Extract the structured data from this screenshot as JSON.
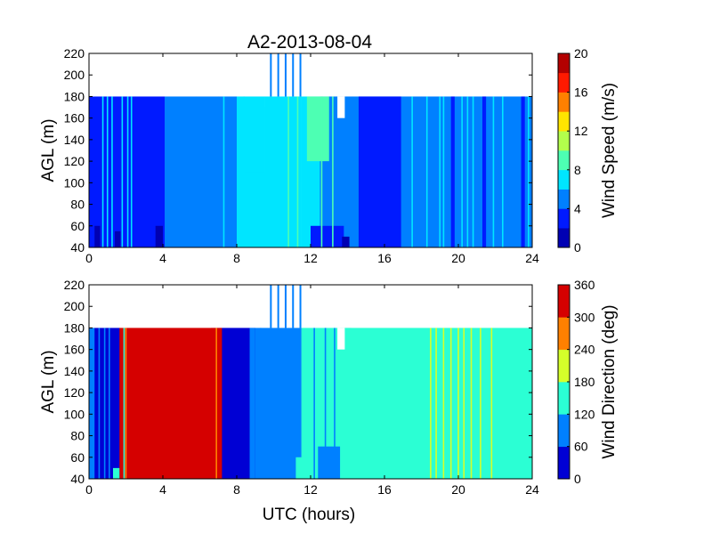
{
  "title": "A2-2013-08-04",
  "chart_data": [
    {
      "type": "heatmap",
      "panel": "top",
      "title": "A2-2013-08-04",
      "xlabel": "",
      "ylabel": "AGL (m)",
      "xlim": [
        0,
        24
      ],
      "ylim": [
        40,
        220
      ],
      "xticks": [
        0,
        4,
        8,
        12,
        16,
        20,
        24
      ],
      "yticks": [
        40,
        60,
        80,
        100,
        120,
        140,
        160,
        180,
        200,
        220
      ],
      "colorbar": {
        "label": "Wind Speed (m/s)",
        "range": [
          0,
          20
        ],
        "ticks": [
          0,
          4,
          8,
          12,
          16,
          20
        ],
        "levels": 10,
        "colormap": "jet"
      },
      "data_top_agl": 180,
      "profiles": [
        {
          "t0": 0.0,
          "t1": 0.35,
          "value": 3.0
        },
        {
          "t0": 0.35,
          "t1": 1.2,
          "value": 3.0
        },
        {
          "t0": 1.2,
          "t1": 2.5,
          "value": 3.0
        },
        {
          "t0": 2.5,
          "t1": 4.1,
          "value": 2.8
        },
        {
          "t0": 4.1,
          "t1": 5.8,
          "value": 5.0
        },
        {
          "t0": 5.8,
          "t1": 7.0,
          "value": 5.0
        },
        {
          "t0": 7.0,
          "t1": 8.0,
          "value": 5.5
        },
        {
          "t0": 8.0,
          "t1": 9.5,
          "value": 6.6
        },
        {
          "t0": 9.5,
          "t1": 10.5,
          "value": 6.4
        },
        {
          "t0": 10.5,
          "t1": 11.5,
          "value": 7.2
        },
        {
          "t0": 11.5,
          "t1": 12.5,
          "value": 6.0
        },
        {
          "t0": 12.5,
          "t1": 14.3,
          "value": 5.2
        },
        {
          "t0": 14.3,
          "t1": 18.0,
          "value": 5.0
        },
        {
          "t0": 18.0,
          "t1": 24.0,
          "value": 5.0
        }
      ],
      "patches": [
        {
          "t0": 0.3,
          "t1": 0.6,
          "agl0": 40,
          "agl1": 60,
          "value": 1.5
        },
        {
          "t0": 1.4,
          "t1": 1.7,
          "agl0": 40,
          "agl1": 55,
          "value": 1.0
        },
        {
          "t0": 3.6,
          "t1": 4.0,
          "agl0": 40,
          "agl1": 60,
          "value": 1.5
        },
        {
          "t0": 8.3,
          "t1": 11.0,
          "agl0": 40,
          "agl1": 110,
          "value": 6.8
        },
        {
          "t0": 9.5,
          "t1": 11.5,
          "agl0": 100,
          "agl1": 170,
          "value": 6.8
        },
        {
          "t0": 11.8,
          "t1": 13.0,
          "agl0": 120,
          "agl1": 180,
          "value": 8.2
        },
        {
          "t0": 12.0,
          "t1": 13.8,
          "agl0": 40,
          "agl1": 60,
          "value": 2.5
        },
        {
          "t0": 13.7,
          "t1": 14.1,
          "agl0": 40,
          "agl1": 50,
          "value": 1.5
        },
        {
          "t0": 14.6,
          "t1": 16.9,
          "agl0": 40,
          "agl1": 180,
          "value": 3.5
        },
        {
          "t0": 19.6,
          "t1": 19.8,
          "agl0": 40,
          "agl1": 180,
          "value": 3.2
        },
        {
          "t0": 21.3,
          "t1": 21.5,
          "agl0": 40,
          "agl1": 180,
          "value": 3.2
        },
        {
          "t0": 23.4,
          "t1": 23.6,
          "agl0": 40,
          "agl1": 180,
          "value": 2.5
        }
      ],
      "streaks": [
        {
          "t": 0.75,
          "value": 6.2
        },
        {
          "t": 1.0,
          "value": 6.2
        },
        {
          "t": 1.25,
          "value": 6.2
        },
        {
          "t": 1.8,
          "value": 6.2
        },
        {
          "t": 2.1,
          "value": 6.2
        },
        {
          "t": 2.3,
          "value": 6.2
        },
        {
          "t": 7.3,
          "value": 6.2
        },
        {
          "t": 8.4,
          "value": 7.5
        },
        {
          "t": 10.8,
          "value": 9.0
        },
        {
          "t": 11.3,
          "value": 8.5
        },
        {
          "t": 12.6,
          "value": 9.5
        },
        {
          "t": 13.2,
          "value": 8.2
        },
        {
          "t": 17.5,
          "value": 6.0
        },
        {
          "t": 18.3,
          "value": 6.5
        },
        {
          "t": 19.0,
          "value": 6.5
        },
        {
          "t": 19.2,
          "value": 6.0
        },
        {
          "t": 20.2,
          "value": 7.0
        },
        {
          "t": 20.5,
          "value": 6.5
        },
        {
          "t": 20.8,
          "value": 7.5
        },
        {
          "t": 21.9,
          "value": 6.5
        },
        {
          "t": 22.4,
          "value": 6.2
        },
        {
          "t": 23.8,
          "value": 7.5
        }
      ],
      "above_gates": [
        {
          "t0": 9.8,
          "t1": 11.8,
          "agl0": 180,
          "agl1": 220,
          "value": 5.5
        }
      ],
      "missing": [
        {
          "t0": 13.45,
          "t1": 13.85,
          "agl0": 160,
          "agl1": 180
        }
      ]
    },
    {
      "type": "heatmap",
      "panel": "bottom",
      "xlabel": "UTC (hours)",
      "ylabel": "AGL (m)",
      "xlim": [
        0,
        24
      ],
      "ylim": [
        40,
        220
      ],
      "xticks": [
        0,
        4,
        8,
        12,
        16,
        20,
        24
      ],
      "yticks": [
        40,
        60,
        80,
        100,
        120,
        140,
        160,
        180,
        200,
        220
      ],
      "colorbar": {
        "label": "Wind Direction (deg)",
        "range": [
          0,
          360
        ],
        "ticks": [
          0,
          60,
          120,
          180,
          240,
          300,
          360
        ],
        "levels": 6,
        "colormap": "jet"
      },
      "data_top_agl": 180,
      "profiles": [
        {
          "t0": 0.0,
          "t1": 1.65,
          "value": 20
        },
        {
          "t0": 1.65,
          "t1": 6.75,
          "value": 335
        },
        {
          "t0": 6.75,
          "t1": 9.0,
          "value": 20
        },
        {
          "t0": 9.0,
          "t1": 11.5,
          "value": 90
        },
        {
          "t0": 11.5,
          "t1": 24.0,
          "value": 150
        }
      ],
      "patches": [
        {
          "t0": 0.0,
          "t1": 0.3,
          "agl0": 40,
          "agl1": 180,
          "value": 80
        },
        {
          "t0": 1.3,
          "t1": 1.65,
          "agl0": 40,
          "agl1": 50,
          "value": 150
        },
        {
          "t0": 6.6,
          "t1": 7.2,
          "agl0": 40,
          "agl1": 180,
          "value": 335
        },
        {
          "t0": 8.7,
          "t1": 9.0,
          "agl0": 40,
          "agl1": 180,
          "value": 90
        },
        {
          "t0": 11.2,
          "t1": 12.5,
          "agl0": 40,
          "agl1": 60,
          "value": 150
        },
        {
          "t0": 12.4,
          "t1": 13.6,
          "agl0": 40,
          "agl1": 70,
          "value": 90
        },
        {
          "t0": 13.6,
          "t1": 14.2,
          "agl0": 40,
          "agl1": 180,
          "value": 150
        }
      ],
      "streaks": [
        {
          "t": 0.55,
          "value": 80
        },
        {
          "t": 0.85,
          "value": 100
        },
        {
          "t": 1.1,
          "value": 80
        },
        {
          "t": 1.9,
          "value": 150
        },
        {
          "t": 2.0,
          "value": 250
        },
        {
          "t": 6.9,
          "value": 240
        },
        {
          "t": 9.3,
          "value": 60
        },
        {
          "t": 12.2,
          "value": 80
        },
        {
          "t": 12.8,
          "value": 70
        },
        {
          "t": 13.3,
          "value": 80
        },
        {
          "t": 18.5,
          "value": 200
        },
        {
          "t": 18.8,
          "value": 210
        },
        {
          "t": 19.2,
          "value": 190
        },
        {
          "t": 19.6,
          "value": 200
        },
        {
          "t": 20.0,
          "value": 210
        },
        {
          "t": 20.3,
          "value": 190
        },
        {
          "t": 20.7,
          "value": 200
        },
        {
          "t": 21.2,
          "value": 190
        },
        {
          "t": 21.8,
          "value": 185
        }
      ],
      "above_gates": [
        {
          "t0": 9.8,
          "t1": 11.8,
          "agl0": 180,
          "agl1": 220,
          "value": 90
        }
      ],
      "missing": [
        {
          "t0": 13.45,
          "t1": 13.85,
          "agl0": 160,
          "agl1": 180
        }
      ]
    }
  ]
}
